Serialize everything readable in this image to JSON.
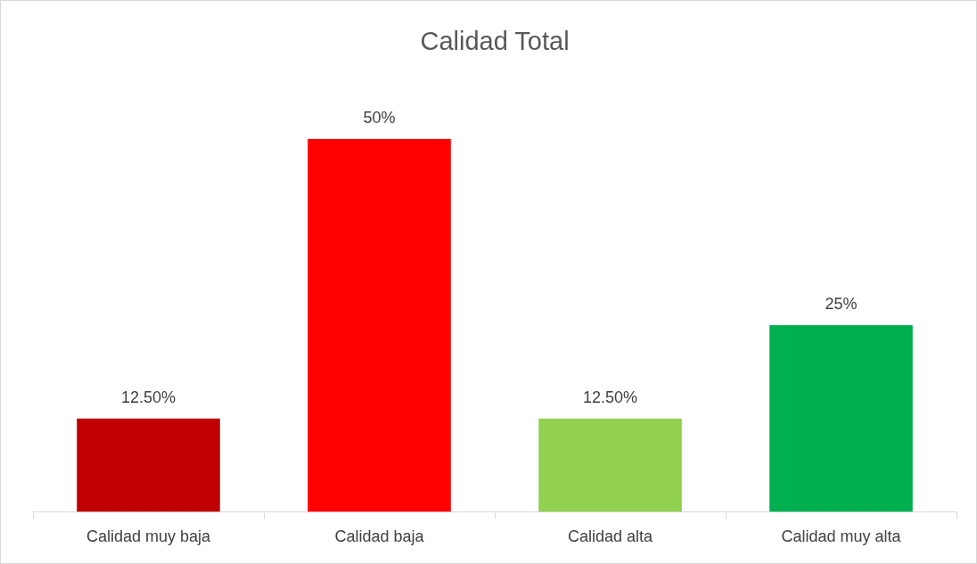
{
  "chart_data": {
    "type": "bar",
    "title": "Calidad Total",
    "categories": [
      "Calidad muy baja",
      "Calidad baja",
      "Calidad alta",
      "Calidad muy alta"
    ],
    "values": [
      12.5,
      50,
      12.5,
      25
    ],
    "colors": [
      "#c00000",
      "#ff0000",
      "#92d050",
      "#00b050"
    ],
    "value_labels": [
      "12.50%",
      "50%",
      "12.50%",
      "25%"
    ],
    "grid": false,
    "legend": false
  }
}
